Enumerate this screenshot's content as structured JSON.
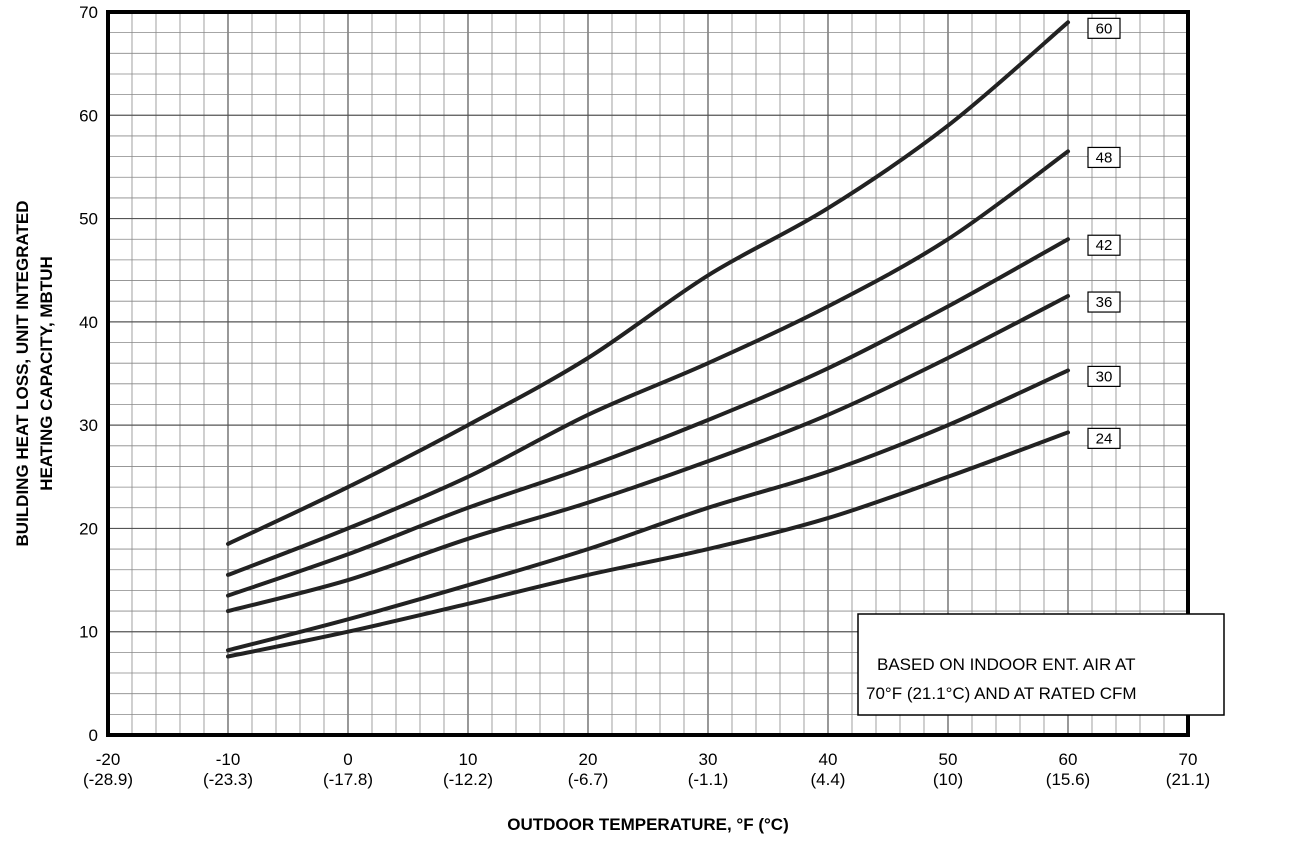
{
  "chart_data": {
    "type": "line",
    "xlabel": "OUTDOOR TEMPERATURE, °F (°C)",
    "ylabel_lines": [
      "BUILDING HEAT LOSS, UNIT INTEGRATED",
      "HEATING CAPACITY, MBTUH"
    ],
    "xlim": [
      -20,
      70
    ],
    "ylim": [
      0,
      70
    ],
    "grid": true,
    "x_ticks": [
      {
        "value": -20,
        "f": "-20",
        "c": "(-28.9)"
      },
      {
        "value": -10,
        "f": "-10",
        "c": "(-23.3)"
      },
      {
        "value": 0,
        "f": "0",
        "c": "(-17.8)"
      },
      {
        "value": 10,
        "f": "10",
        "c": "(-12.2)"
      },
      {
        "value": 20,
        "f": "20",
        "c": "(-6.7)"
      },
      {
        "value": 30,
        "f": "30",
        "c": "(-1.1)"
      },
      {
        "value": 40,
        "f": "40",
        "c": "(4.4)"
      },
      {
        "value": 50,
        "f": "50",
        "c": "(10)"
      },
      {
        "value": 60,
        "f": "60",
        "c": "(15.6)"
      },
      {
        "value": 70,
        "f": "70",
        "c": "(21.1)"
      }
    ],
    "y_ticks": [
      0,
      10,
      20,
      30,
      40,
      50,
      60,
      70
    ],
    "x": [
      -10,
      0,
      10,
      20,
      30,
      40,
      50,
      60
    ],
    "series": [
      {
        "name": "60",
        "values": [
          18.5,
          24,
          30,
          36.5,
          44.5,
          51,
          59,
          69
        ]
      },
      {
        "name": "48",
        "values": [
          15.5,
          20,
          25,
          31,
          36,
          41.5,
          48,
          56.5
        ]
      },
      {
        "name": "42",
        "values": [
          13.5,
          17.5,
          22,
          26,
          30.5,
          35.5,
          41.5,
          48
        ]
      },
      {
        "name": "36",
        "values": [
          12,
          15,
          19,
          22.5,
          26.5,
          31,
          36.5,
          42.5
        ]
      },
      {
        "name": "30",
        "values": [
          8.2,
          11.2,
          14.5,
          18,
          22,
          25.5,
          30,
          35.3
        ]
      },
      {
        "name": "24",
        "values": [
          7.6,
          10,
          12.7,
          15.5,
          18,
          21,
          25,
          29.3
        ]
      }
    ],
    "annotation_lines": [
      "BASED ON INDOOR ENT. AIR AT",
      "70°F (21.1°C) AND AT RATED CFM"
    ]
  }
}
